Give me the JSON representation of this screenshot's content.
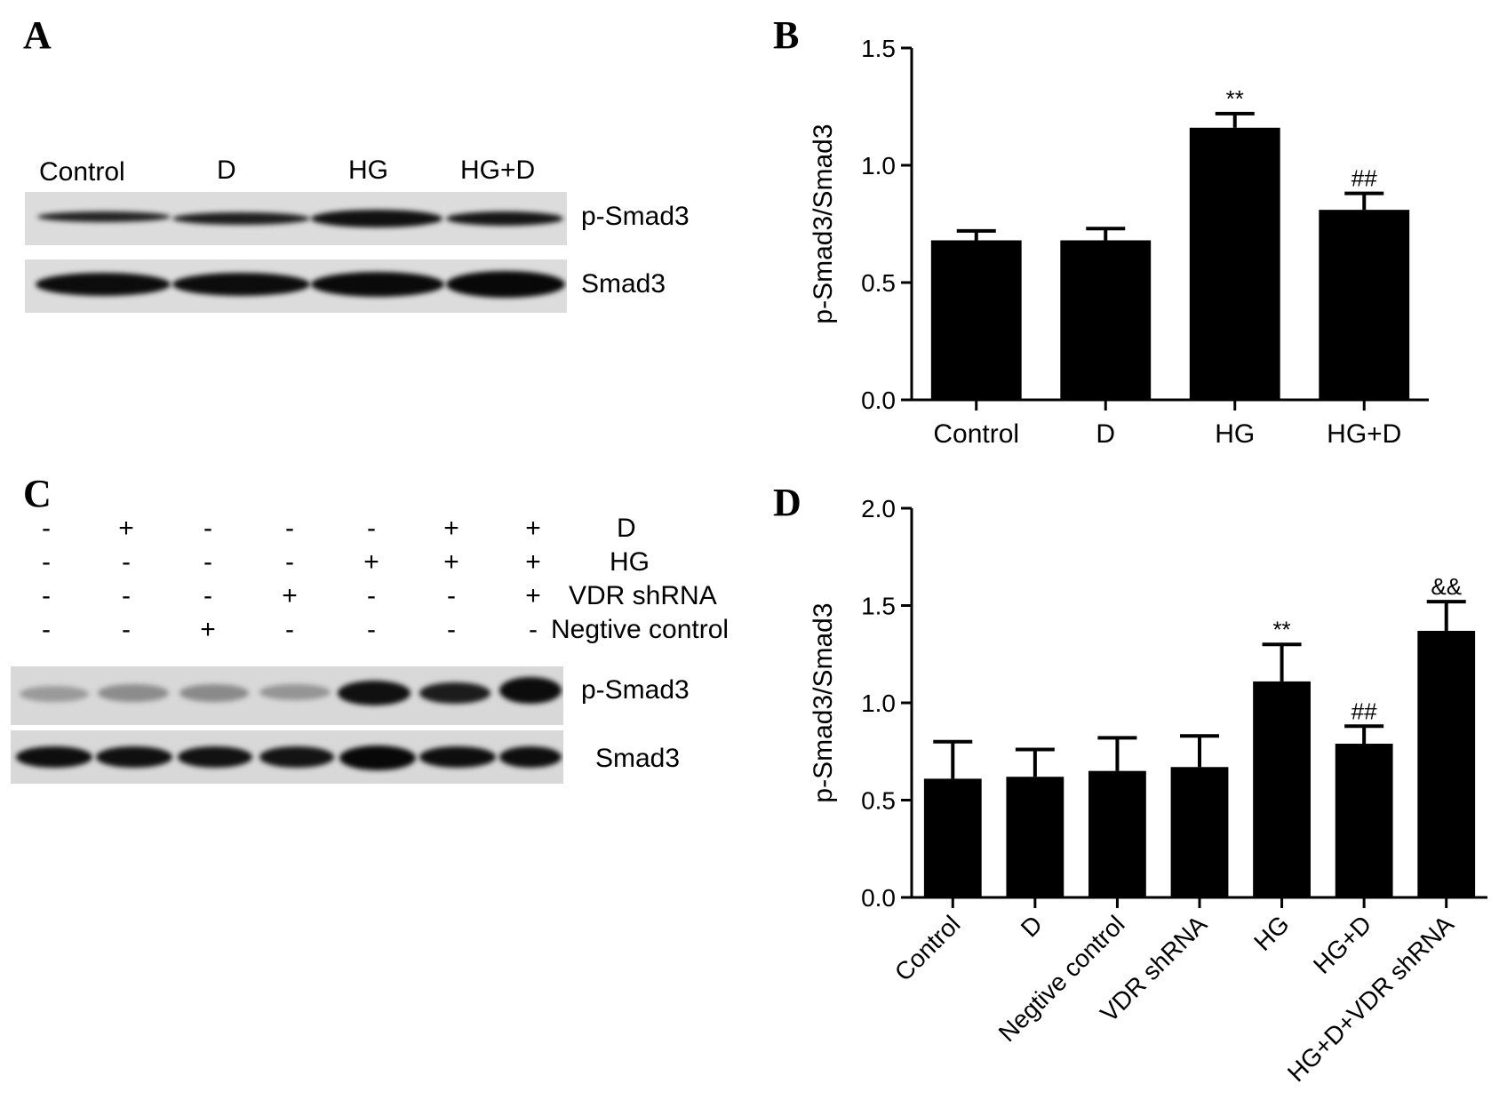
{
  "panels": {
    "a": "A",
    "b": "B",
    "c": "C",
    "d": "D"
  },
  "blot_a": {
    "lanes": [
      "Control",
      "D",
      "HG",
      "HG+D"
    ],
    "rows": [
      "p-Smad3",
      "Smad3"
    ]
  },
  "blot_c": {
    "conditions": [
      {
        "name": "D",
        "signs": [
          "-",
          "+",
          "-",
          "-",
          "-",
          "+",
          "+"
        ]
      },
      {
        "name": "HG",
        "signs": [
          "-",
          "-",
          "-",
          "-",
          "+",
          "+",
          "+"
        ]
      },
      {
        "name": "VDR shRNA",
        "signs": [
          "-",
          "-",
          "-",
          "+",
          "-",
          "-",
          "+"
        ]
      },
      {
        "name": "Negtive control",
        "signs": [
          "-",
          "-",
          "+",
          "-",
          "-",
          "-",
          "-"
        ]
      }
    ],
    "rows": [
      "p-Smad3",
      "Smad3"
    ]
  },
  "chart_data": [
    {
      "type": "bar",
      "ylabel": "p-Smad3/Smad3",
      "categories": [
        "Control",
        "D",
        "HG",
        "HG+D"
      ],
      "values": [
        0.68,
        0.68,
        1.16,
        0.81
      ],
      "errors": [
        0.04,
        0.05,
        0.06,
        0.07
      ],
      "annotations": [
        "",
        "",
        "**",
        "##"
      ],
      "ylim": [
        0,
        1.5
      ],
      "yticks": [
        "0.0",
        "0.5",
        "1.0",
        "1.5"
      ]
    },
    {
      "type": "bar",
      "ylabel": "p-Smad3/Smad3",
      "categories": [
        "Control",
        "D",
        "Negtive control",
        "VDR shRNA",
        "HG",
        "HG+D",
        "HG+D+VDR shRNA"
      ],
      "values": [
        0.61,
        0.62,
        0.65,
        0.67,
        1.11,
        0.79,
        1.37
      ],
      "errors": [
        0.19,
        0.14,
        0.17,
        0.16,
        0.19,
        0.09,
        0.15
      ],
      "annotations": [
        "",
        "",
        "",
        "",
        "**",
        "##",
        "&&"
      ],
      "ylim": [
        0,
        2.0
      ],
      "yticks": [
        "0.0",
        "0.5",
        "1.0",
        "1.5",
        "2.0"
      ]
    }
  ]
}
